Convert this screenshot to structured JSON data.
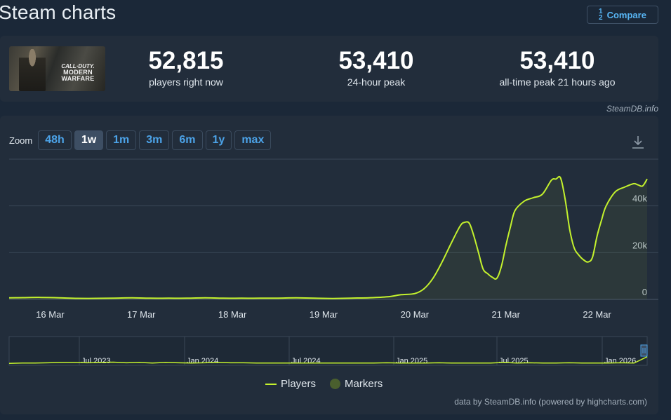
{
  "header": {
    "title": "Steam charts",
    "compare_label": "Compare",
    "compare_icon": "sort-numeric-icon"
  },
  "game": {
    "logo_line1": "CALL·DUTY.",
    "logo_line2": "MODERN",
    "logo_line3": "WARFARE"
  },
  "stats": [
    {
      "value": "52,815",
      "label": "players right now"
    },
    {
      "value": "53,410",
      "label": "24-hour peak"
    },
    {
      "value": "53,410",
      "label": "all-time peak 21 hours ago"
    }
  ],
  "watermark": "SteamDB.info",
  "zoom": {
    "label": "Zoom",
    "options": [
      "48h",
      "1w",
      "1m",
      "3m",
      "6m",
      "1y",
      "max"
    ],
    "active": "1w"
  },
  "legend": {
    "players": "Players",
    "markers": "Markers"
  },
  "credits": "data by SteamDB.info (powered by highcharts.com)",
  "colors": {
    "line": "#c4f22d",
    "background": "#1b2838",
    "panel": "#222d3b",
    "accent": "#4ca3e8"
  },
  "chart_data": {
    "type": "line",
    "series": [
      {
        "name": "Players",
        "x": [
          15.55,
          15.7,
          15.9,
          16.1,
          16.3,
          16.5,
          16.7,
          16.9,
          17.1,
          17.3,
          17.5,
          17.7,
          17.9,
          18.1,
          18.3,
          18.5,
          18.7,
          18.9,
          19.1,
          19.3,
          19.5,
          19.7,
          19.85,
          20.0,
          20.1,
          20.2,
          20.3,
          20.4,
          20.5,
          20.55,
          20.6,
          20.65,
          20.7,
          20.75,
          20.8,
          20.85,
          20.9,
          20.95,
          21.0,
          21.05,
          21.1,
          21.2,
          21.3,
          21.4,
          21.5,
          21.55,
          21.6,
          21.65,
          21.7,
          21.75,
          21.8,
          21.85,
          21.9,
          21.95,
          22.0,
          22.05,
          22.1,
          22.2,
          22.3,
          22.4,
          22.45,
          22.5,
          22.55
        ],
        "y": [
          700,
          750,
          850,
          700,
          450,
          450,
          550,
          650,
          500,
          500,
          500,
          650,
          500,
          500,
          500,
          550,
          650,
          500,
          400,
          550,
          700,
          1100,
          2000,
          2500,
          4500,
          9000,
          16000,
          24000,
          31500,
          33000,
          32500,
          27000,
          20000,
          13000,
          11000,
          9500,
          9000,
          14000,
          23000,
          31000,
          38000,
          42000,
          43500,
          45000,
          51000,
          51500,
          52000,
          43000,
          30000,
          22000,
          19000,
          17000,
          16000,
          18000,
          27000,
          34000,
          40000,
          46000,
          48000,
          49500,
          49000,
          48500,
          51500
        ]
      }
    ],
    "xaxis": {
      "ticks": [
        16,
        17,
        18,
        19,
        20,
        21,
        22
      ],
      "tick_labels": [
        "16 Mar",
        "17 Mar",
        "18 Mar",
        "19 Mar",
        "20 Mar",
        "21 Mar",
        "22 Mar"
      ],
      "range": [
        15.55,
        22.55
      ]
    },
    "yaxis": {
      "ticks": [
        0,
        20000,
        40000
      ],
      "tick_labels": [
        "0",
        "20k",
        "40k"
      ],
      "range": [
        0,
        60000
      ]
    },
    "grid": true,
    "navigator": {
      "labels": [
        "Jul 2023",
        "Jan 2024",
        "Jul 2024",
        "Jan 2025",
        "Jul 2025",
        "Jan 2026"
      ],
      "y": [
        2,
        3,
        3,
        4,
        5,
        5,
        4,
        5,
        6,
        4,
        5,
        3,
        5,
        4,
        3,
        4,
        5,
        4,
        4,
        3,
        3,
        3,
        3,
        3,
        3,
        3,
        3,
        3,
        3,
        4,
        3,
        3,
        3,
        4,
        3,
        3,
        3,
        3,
        5,
        3,
        4,
        3,
        3,
        4,
        3,
        3,
        3,
        4,
        3,
        25
      ]
    }
  }
}
